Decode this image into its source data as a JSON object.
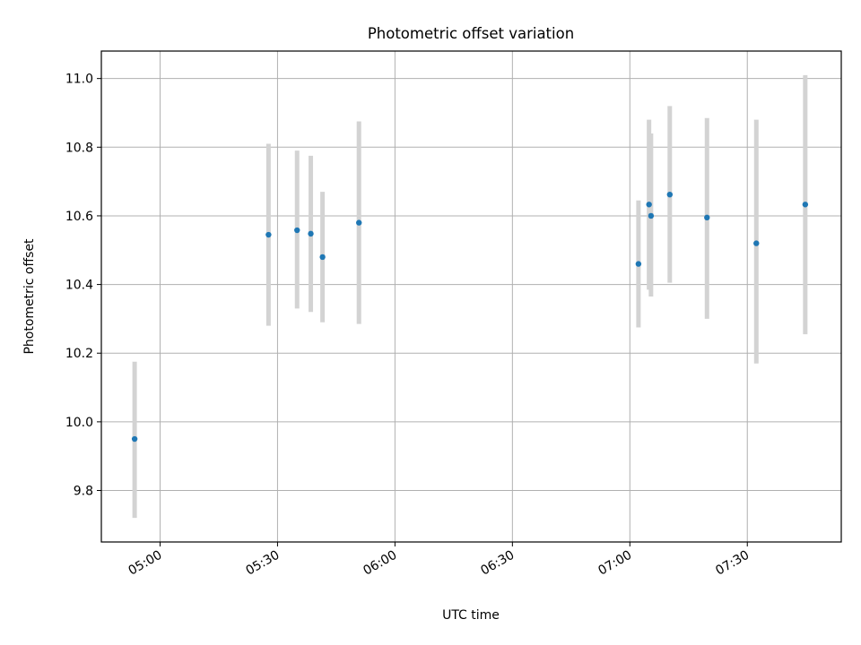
{
  "chart_data": {
    "type": "scatter",
    "title": "Photometric offset variation",
    "xlabel": "UTC time",
    "ylabel": "Photometric offset",
    "x_unit": "UTC time (HH:MM)",
    "xlim": [
      "04:45",
      "07:54"
    ],
    "ylim": [
      9.65,
      11.08
    ],
    "grid": true,
    "x_ticks": [
      "05:00",
      "05:30",
      "06:00",
      "06:30",
      "07:00",
      "07:30"
    ],
    "y_ticks": [
      "9.8",
      "10.0",
      "10.2",
      "10.4",
      "10.6",
      "10.8",
      "11.0"
    ],
    "series": [
      {
        "points": [
          {
            "x": "04:53.5",
            "y": 9.95,
            "ylow": 9.72,
            "yhigh": 10.175
          },
          {
            "x": "05:27.7",
            "y": 10.545,
            "ylow": 10.28,
            "yhigh": 10.81
          },
          {
            "x": "05:35.0",
            "y": 10.558,
            "ylow": 10.33,
            "yhigh": 10.79
          },
          {
            "x": "05:38.5",
            "y": 10.548,
            "ylow": 10.32,
            "yhigh": 10.775
          },
          {
            "x": "05:41.5",
            "y": 10.48,
            "ylow": 10.29,
            "yhigh": 10.67
          },
          {
            "x": "05:50.8",
            "y": 10.58,
            "ylow": 10.285,
            "yhigh": 10.875
          },
          {
            "x": "07:02.2",
            "y": 10.46,
            "ylow": 10.275,
            "yhigh": 10.645
          },
          {
            "x": "07:04.9",
            "y": 10.633,
            "ylow": 10.385,
            "yhigh": 10.88
          },
          {
            "x": "07:05.4",
            "y": 10.6,
            "ylow": 10.365,
            "yhigh": 10.84
          },
          {
            "x": "07:10.2",
            "y": 10.662,
            "ylow": 10.405,
            "yhigh": 10.92
          },
          {
            "x": "07:19.7",
            "y": 10.595,
            "ylow": 10.3,
            "yhigh": 10.885
          },
          {
            "x": "07:32.3",
            "y": 10.52,
            "ylow": 10.17,
            "yhigh": 10.88
          },
          {
            "x": "07:44.8",
            "y": 10.633,
            "ylow": 10.255,
            "yhigh": 11.01
          }
        ]
      }
    ],
    "colors": {
      "point": "#1f77b4",
      "errorbar": "#d3d3d3",
      "grid": "#b0b0b0",
      "axes": "#000000"
    }
  }
}
